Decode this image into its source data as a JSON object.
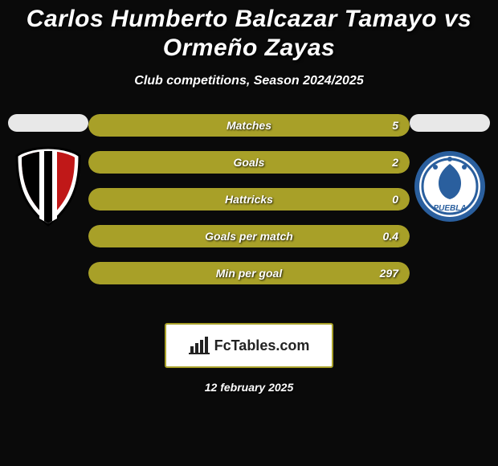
{
  "title_line1": "Carlos Humberto Balcazar Tamayo vs",
  "title_line2": "Ormeño Zayas",
  "subtitle": "Club competitions, Season 2024/2025",
  "date": "12 february 2025",
  "logo_text": "FcTables.com",
  "colors": {
    "fill_left": "#a8a028",
    "fill_right": "#a8a028",
    "row_bg": "#1a1a1a",
    "page_bg": "#0a0a0a",
    "pill_bg": "#e8e8e8",
    "logo_border": "#a8a028",
    "text": "#ffffff"
  },
  "crest_left": {
    "bg": "#ffffff",
    "stripe": "#c01818",
    "center": "#000000"
  },
  "crest_right": {
    "bg": "#ffffff",
    "ring": "#2a5f9e",
    "accent": "#2a5f9e"
  },
  "stats": [
    {
      "label": "Matches",
      "left_text": "",
      "right_text": "5",
      "left_pct": 6,
      "right_pct": 94
    },
    {
      "label": "Goals",
      "left_text": "",
      "right_text": "2",
      "left_pct": 6,
      "right_pct": 94
    },
    {
      "label": "Hattricks",
      "left_text": "",
      "right_text": "0",
      "left_pct": 6,
      "right_pct": 94
    },
    {
      "label": "Goals per match",
      "left_text": "",
      "right_text": "0.4",
      "left_pct": 6,
      "right_pct": 94
    },
    {
      "label": "Min per goal",
      "left_text": "",
      "right_text": "297",
      "left_pct": 6,
      "right_pct": 94
    }
  ]
}
